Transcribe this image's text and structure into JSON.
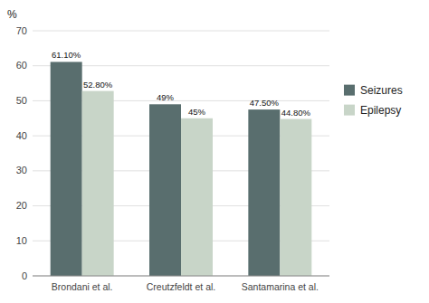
{
  "chart_data": {
    "type": "bar",
    "y_label": "%",
    "categories": [
      "Brondani et al.",
      "Creutzfeldt et al.",
      "Santamarina et al."
    ],
    "series": [
      {
        "name": "Seizures",
        "color": "#596e6e",
        "values": [
          61.1,
          49.0,
          47.5
        ],
        "value_labels": [
          "61.10%",
          "49%",
          "47.50%"
        ]
      },
      {
        "name": "Epilepsy",
        "color": "#c8d5c8",
        "values": [
          52.8,
          45.0,
          44.8
        ],
        "value_labels": [
          "52.80%",
          "45%",
          "44.80%"
        ]
      }
    ],
    "ylim": [
      0,
      70
    ],
    "yticks": [
      0,
      10,
      20,
      30,
      40,
      50,
      60,
      70
    ],
    "grid": true,
    "legend": "right",
    "data_labels": true
  }
}
